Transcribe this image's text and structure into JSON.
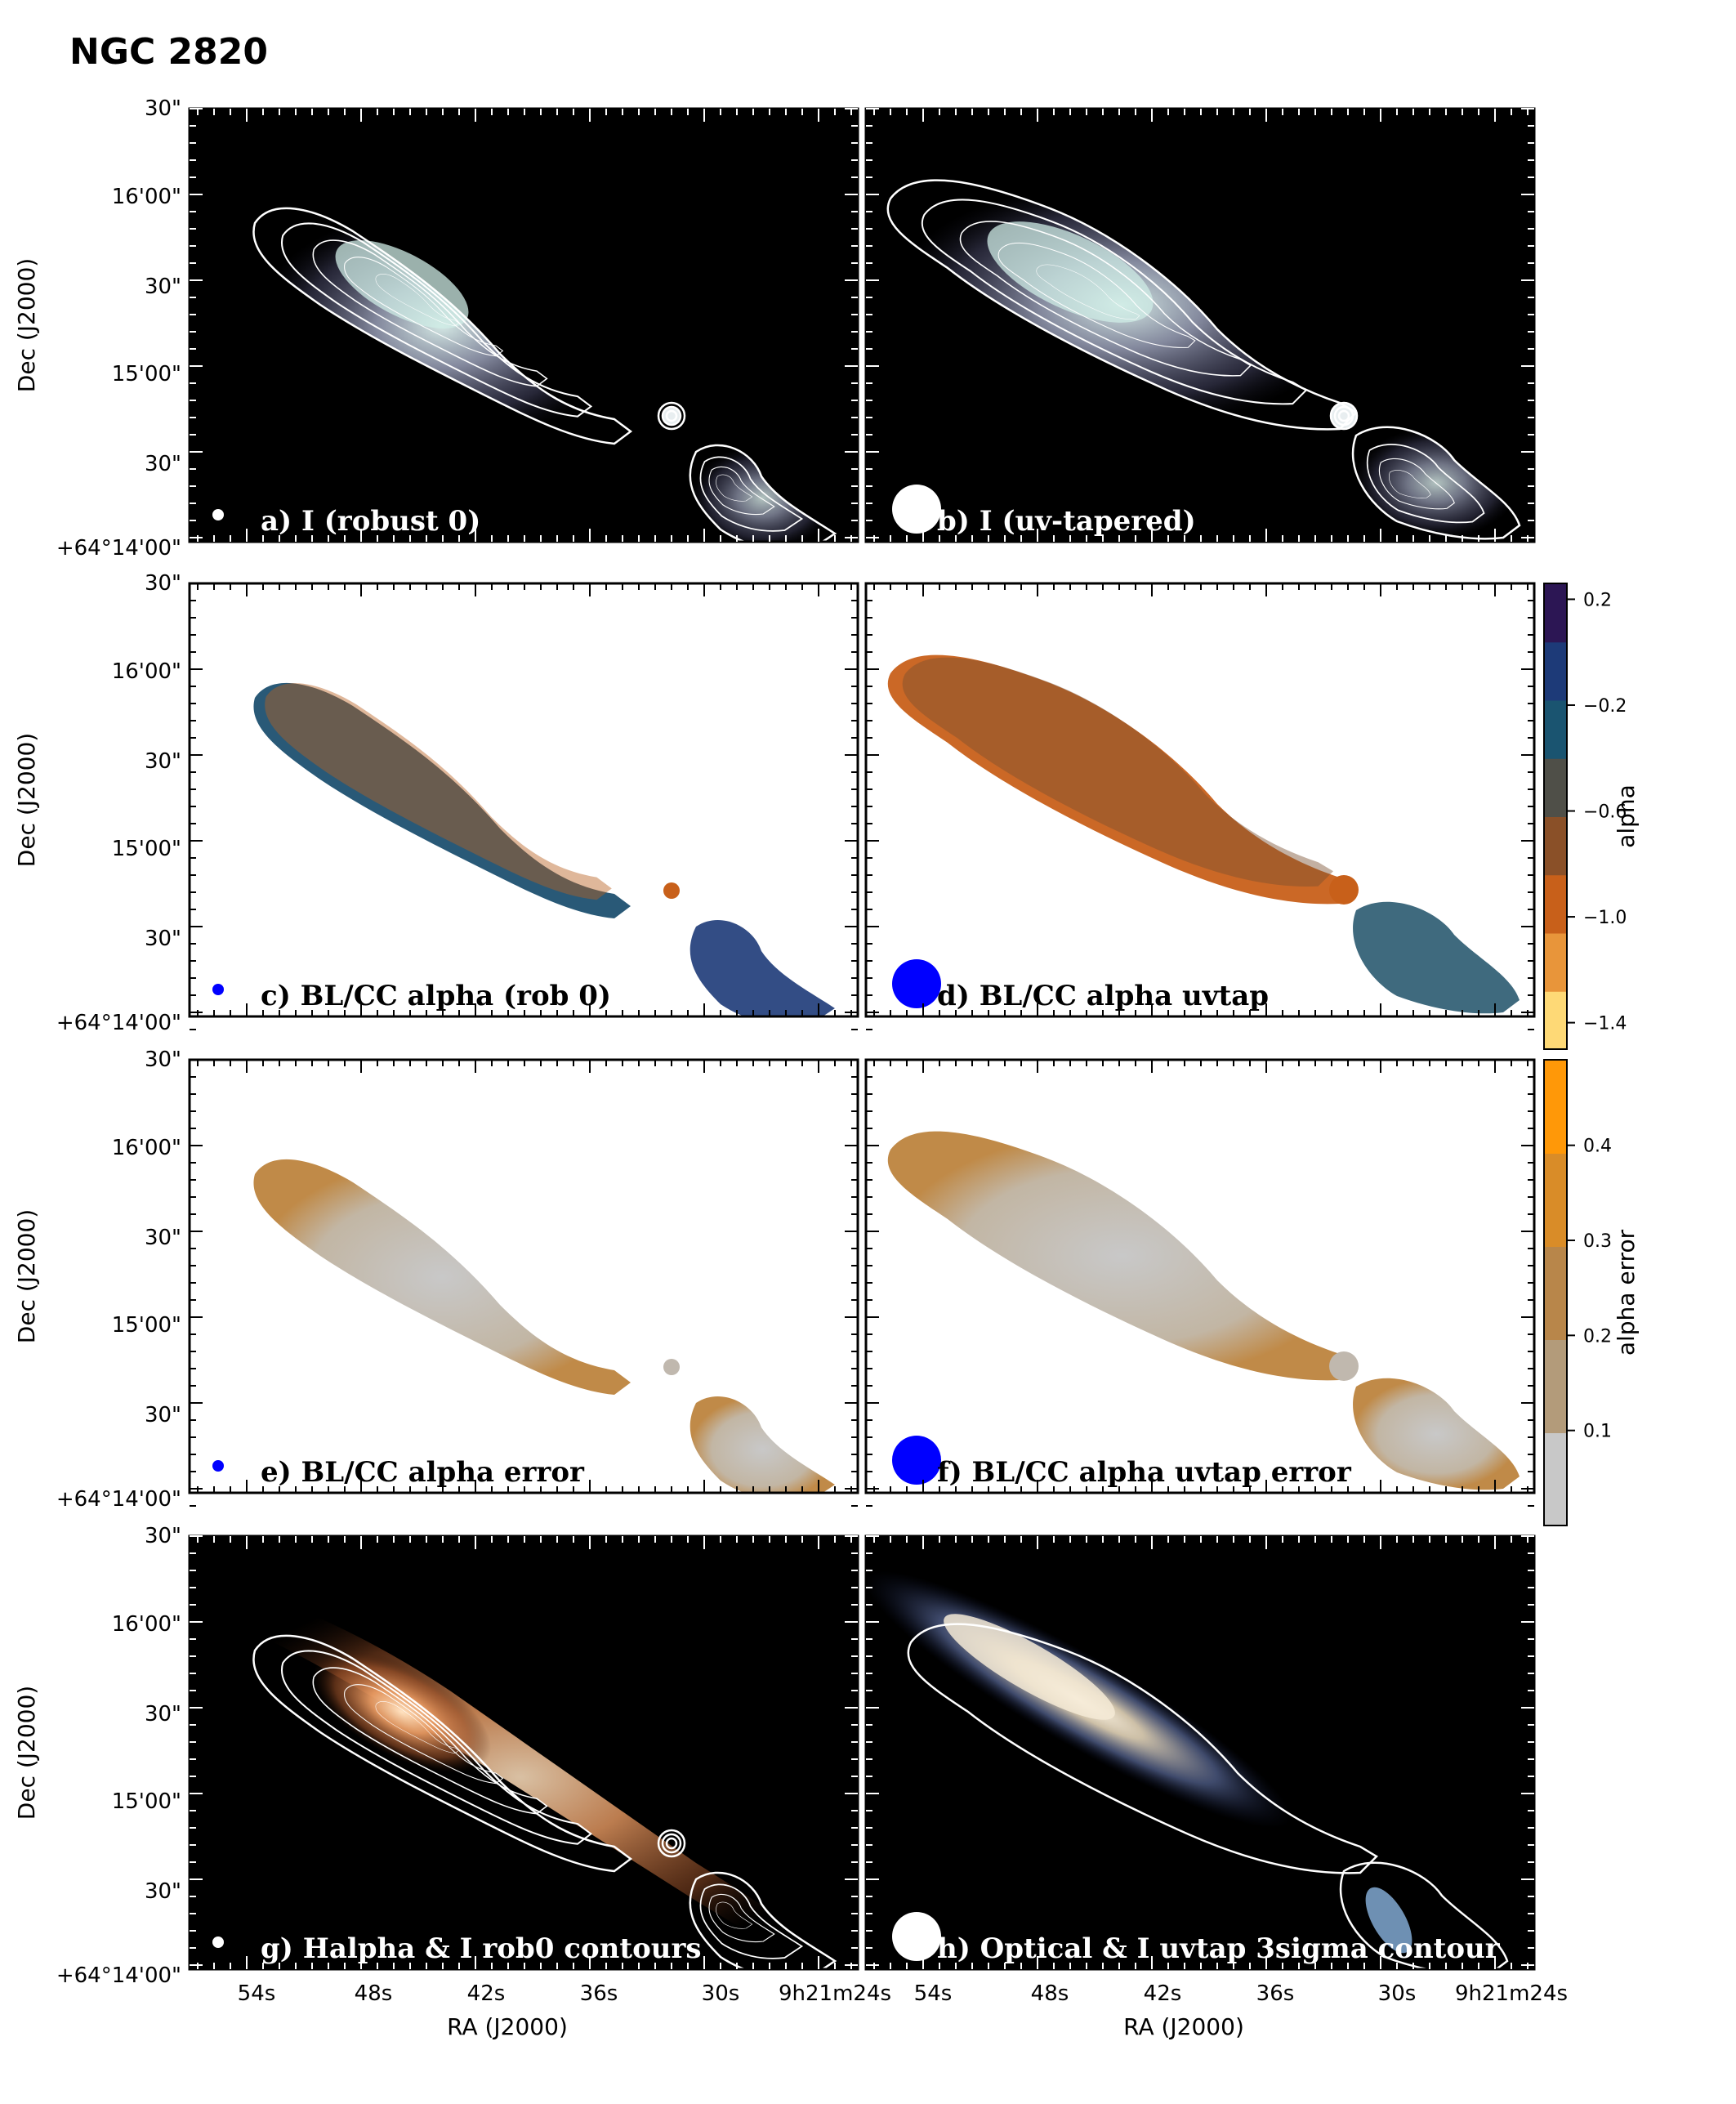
{
  "title": "NGC 2820",
  "colors": {
    "background": "#000000",
    "contour": "#ffffff",
    "beam_marker_dark": "#ffffff",
    "beam_marker_light": "#0000ff",
    "alpha_cmap": [
      "#fed976",
      "#e8953a",
      "#c8601a",
      "#8a5028",
      "#4f4f48",
      "#1a5470",
      "#1d3a78",
      "#2c1654"
    ],
    "error_cmap": [
      "#c8c8c8",
      "#b39b7a",
      "#b8864a",
      "#d98c28",
      "#ff9808"
    ]
  },
  "chart_data": [
    {
      "id": "a",
      "type": "heatmap",
      "image": "radio_continuum_I",
      "label": "a) I (robust 0)",
      "xlabel": "",
      "ylabel": "Dec (J2000)",
      "beam": "small",
      "contours": true
    },
    {
      "id": "b",
      "type": "heatmap",
      "image": "radio_continuum_I_uvtaper",
      "label": "b) I (uv-tapered)",
      "xlabel": "",
      "ylabel": "",
      "beam": "large",
      "contours": true
    },
    {
      "id": "c",
      "type": "heatmap",
      "image": "spectral_index_alpha",
      "label": "c) BL/CC alpha (rob 0)",
      "xlabel": "",
      "ylabel": "Dec (J2000)",
      "beam": "small",
      "contours": false
    },
    {
      "id": "d",
      "type": "heatmap",
      "image": "spectral_index_alpha_uvtaper",
      "label": "d) BL/CC alpha uvtap",
      "xlabel": "",
      "ylabel": "",
      "beam": "large",
      "contours": false
    },
    {
      "id": "e",
      "type": "heatmap",
      "image": "spectral_index_error",
      "label": "e)  BL/CC alpha error",
      "xlabel": "",
      "ylabel": "Dec (J2000)",
      "beam": "small",
      "contours": false
    },
    {
      "id": "f",
      "type": "heatmap",
      "image": "spectral_index_error_uvtaper",
      "label": "f) BL/CC alpha uvtap error",
      "xlabel": "",
      "ylabel": "",
      "beam": "large",
      "contours": false
    },
    {
      "id": "g",
      "type": "heatmap",
      "image": "halpha_with_contours",
      "label": "g) Halpha & I rob0 contours",
      "xlabel": "RA (J2000)",
      "ylabel": "Dec (J2000)",
      "beam": "small",
      "contours": true
    },
    {
      "id": "h",
      "type": "heatmap",
      "image": "optical_with_contour",
      "label": "h) Optical & I uvtap 3sigma contour",
      "xlabel": "RA (J2000)",
      "ylabel": "",
      "beam": "large",
      "contours": true
    }
  ],
  "axes": {
    "dec_ticks": [
      "30\"",
      "16'00\"",
      "30\"",
      "15'00\"",
      "30\"",
      "+64°14'00\""
    ],
    "ra_ticks": [
      "54s",
      "48s",
      "42s",
      "36s",
      "30s",
      "9h21m24s"
    ],
    "dec_label": "Dec (J2000)",
    "ra_label": "RA (J2000)"
  },
  "colorbars": [
    {
      "label": "alpha",
      "range": [
        -1.5,
        0.26
      ],
      "ticks": [
        0.2,
        -0.2,
        -0.6,
        -1.0,
        -1.4
      ],
      "tick_labels": [
        "0.2",
        "−0.2",
        "−0.6",
        "−1.0",
        "−1.4"
      ]
    },
    {
      "label": "alpha error",
      "range": [
        0.0,
        0.49
      ],
      "ticks": [
        0.4,
        0.3,
        0.2,
        0.1
      ],
      "tick_labels": [
        "0.4",
        "0.3",
        "0.2",
        "0.1"
      ]
    }
  ]
}
